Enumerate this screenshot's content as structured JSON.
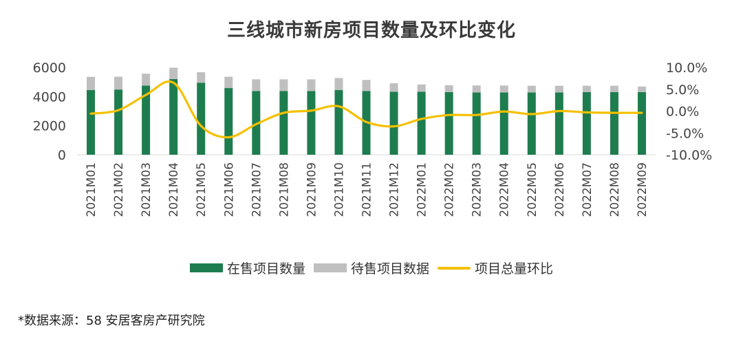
{
  "chart_data": {
    "type": "bar",
    "title": "三线城市新房项目数量及环比变化",
    "categories": [
      "2021M01",
      "2021M02",
      "2021M03",
      "2021M04",
      "2021M05",
      "2021M06",
      "2021M07",
      "2021M08",
      "2021M09",
      "2021M10",
      "2021M11",
      "2021M12",
      "2022M01",
      "2022M02",
      "2022M03",
      "2022M04",
      "2022M05",
      "2022M06",
      "2022M07",
      "2022M08",
      "2022M09"
    ],
    "series": [
      {
        "name": "在售项目数量",
        "type": "bar",
        "color": "#1e7d4e",
        "values": [
          4450,
          4480,
          4750,
          5200,
          4950,
          4580,
          4380,
          4380,
          4380,
          4450,
          4380,
          4330,
          4330,
          4300,
          4280,
          4280,
          4280,
          4280,
          4300,
          4300,
          4300
        ]
      },
      {
        "name": "待售项目数据",
        "type": "bar",
        "color": "#bfbfbf",
        "values": [
          900,
          880,
          820,
          780,
          720,
          780,
          800,
          800,
          800,
          820,
          760,
          580,
          500,
          480,
          480,
          480,
          460,
          460,
          440,
          440,
          390
        ]
      },
      {
        "name": "项目总量环比",
        "type": "line",
        "axis": "right",
        "color": "#f5c000",
        "values": [
          -0.6,
          0.2,
          3.7,
          6.5,
          -3.4,
          -6.0,
          -3.0,
          -0.4,
          0.1,
          1.1,
          -2.5,
          -3.5,
          -1.8,
          -0.9,
          -0.9,
          -0.1,
          -0.7,
          0.0,
          -0.3,
          -0.4,
          -0.4
        ]
      }
    ],
    "y_left": {
      "ticks": [
        "6000",
        "4000",
        "2000",
        "0"
      ],
      "ylim": [
        0,
        6000
      ]
    },
    "y_right": {
      "ticks": [
        "10.0%",
        "5.0%",
        "0.0%",
        "-5.0%",
        "-10.0%"
      ],
      "ylim": [
        -10,
        10
      ]
    },
    "legend_position": "bottom",
    "stacked": true
  },
  "source_note": "*数据来源：58 安居客房产研究院"
}
